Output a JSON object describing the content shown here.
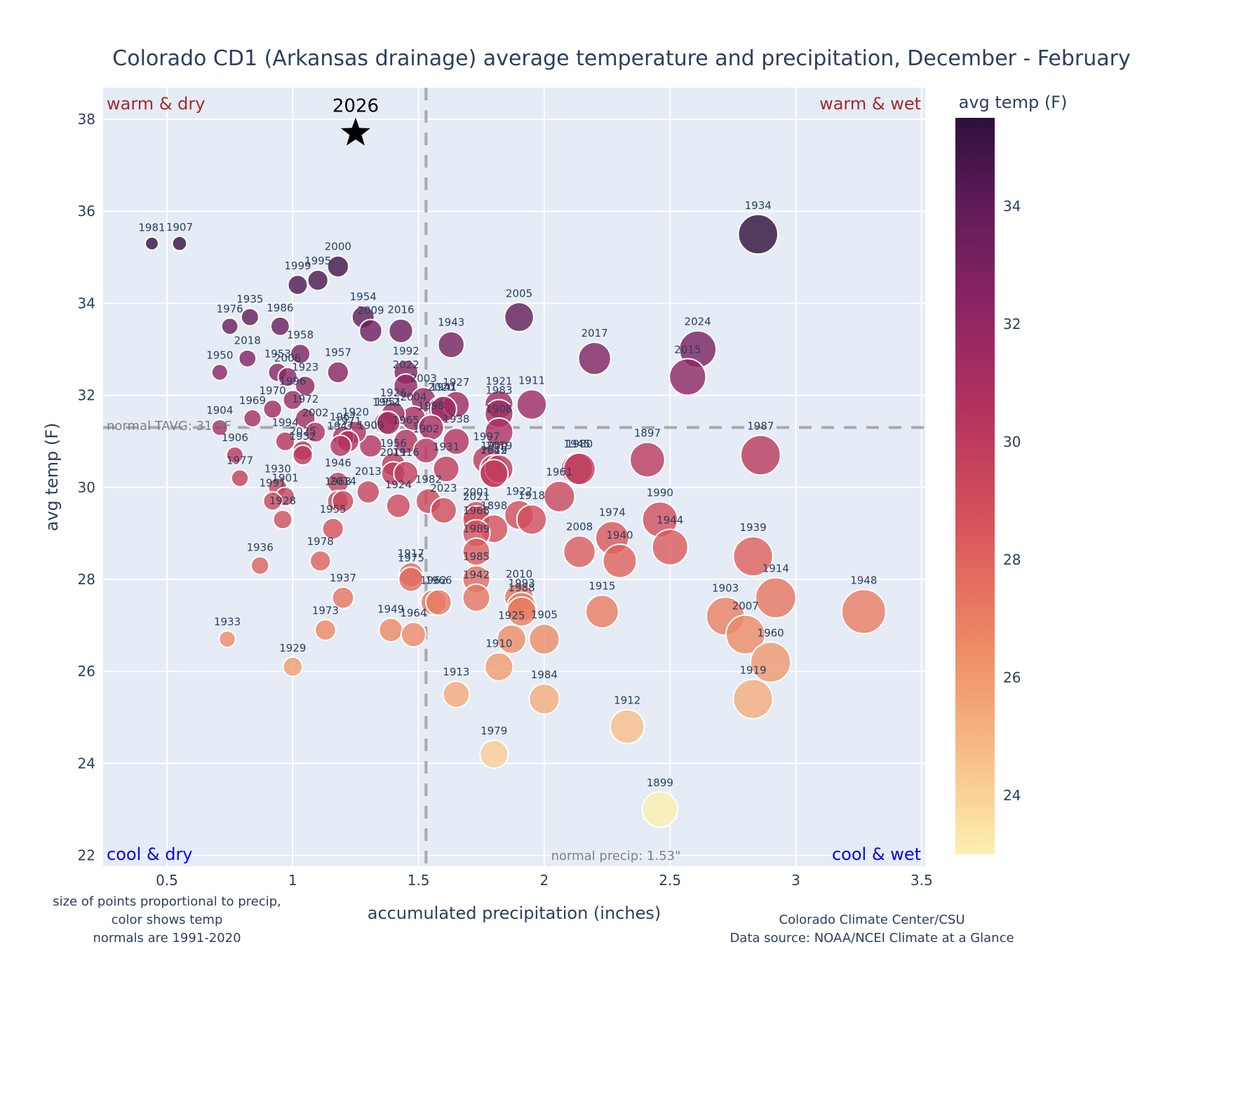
{
  "chart_data": {
    "type": "scatter",
    "title": "Colorado CD1 (Arkansas drainage) average temperature and precipitation, December - February",
    "xlabel": "accumulated precipitation (inches)",
    "ylabel": "avg temp (F)",
    "xlim": [
      0.25,
      3.52
    ],
    "ylim": [
      21.8,
      38.9
    ],
    "x_ticks": [
      0.5,
      1,
      1.5,
      2,
      2.5,
      3,
      3.5
    ],
    "x_tick_labels": [
      "0.5",
      "1",
      "1.5",
      "2",
      "2.5",
      "3",
      "3.5"
    ],
    "y_ticks": [
      22,
      24,
      26,
      28,
      30,
      32,
      34,
      36,
      38
    ],
    "y_tick_labels": [
      "22",
      "24",
      "26",
      "28",
      "30",
      "32",
      "34",
      "36",
      "38"
    ],
    "grid": true,
    "colorbar": {
      "title": "avg temp (F)",
      "range": [
        23,
        35.5
      ],
      "ticks": [
        24,
        26,
        28,
        30,
        32,
        34
      ],
      "tick_labels": [
        "24",
        "26",
        "28",
        "30",
        "32",
        "34"
      ],
      "colorscale": "magma-like (light yellow to dark purple)",
      "placement": "right"
    },
    "size_encoding": "precipitation",
    "color_encoding": "avg temp",
    "normals": {
      "precip": 1.53,
      "precip_label": "normal precip: 1.53\"",
      "temp": 31.3,
      "temp_label": "normal TAVG: 31.3F"
    },
    "quadrant_labels": {
      "top_left": "warm & dry",
      "top_right": "warm & wet",
      "bottom_left": "cool & dry",
      "bottom_right": "cool & wet"
    },
    "highlight": {
      "label": "2026",
      "x": 1.25,
      "y": 37.7,
      "marker": "star"
    },
    "points": [
      {
        "year": "1981",
        "x": 0.44,
        "y": 35.3
      },
      {
        "year": "1907",
        "x": 0.55,
        "y": 35.3
      },
      {
        "year": "2000",
        "x": 1.18,
        "y": 34.8
      },
      {
        "year": "1995",
        "x": 1.1,
        "y": 34.5
      },
      {
        "year": "1999",
        "x": 1.02,
        "y": 34.4
      },
      {
        "year": "1954",
        "x": 1.28,
        "y": 33.7
      },
      {
        "year": "2009",
        "x": 1.31,
        "y": 33.4
      },
      {
        "year": "2016",
        "x": 1.43,
        "y": 33.4
      },
      {
        "year": "1935",
        "x": 0.83,
        "y": 33.7
      },
      {
        "year": "1976",
        "x": 0.75,
        "y": 33.5
      },
      {
        "year": "1986",
        "x": 0.95,
        "y": 33.5
      },
      {
        "year": "1943",
        "x": 1.63,
        "y": 33.1
      },
      {
        "year": "2005",
        "x": 1.9,
        "y": 33.7
      },
      {
        "year": "2017",
        "x": 2.2,
        "y": 32.8
      },
      {
        "year": "2024",
        "x": 2.61,
        "y": 33.0
      },
      {
        "year": "2015",
        "x": 2.57,
        "y": 32.4
      },
      {
        "year": "1934",
        "x": 2.85,
        "y": 35.5
      },
      {
        "year": "1958",
        "x": 1.03,
        "y": 32.9
      },
      {
        "year": "2018",
        "x": 0.82,
        "y": 32.8
      },
      {
        "year": "1950",
        "x": 0.71,
        "y": 32.5
      },
      {
        "year": "1953",
        "x": 0.94,
        "y": 32.5
      },
      {
        "year": "2006",
        "x": 0.98,
        "y": 32.4
      },
      {
        "year": "1923",
        "x": 1.05,
        "y": 32.2
      },
      {
        "year": "1957",
        "x": 1.18,
        "y": 32.5
      },
      {
        "year": "1992",
        "x": 1.45,
        "y": 32.5
      },
      {
        "year": "2022",
        "x": 1.45,
        "y": 32.2
      },
      {
        "year": "1996",
        "x": 1.0,
        "y": 31.9
      },
      {
        "year": "1970",
        "x": 0.92,
        "y": 31.7
      },
      {
        "year": "1972",
        "x": 1.05,
        "y": 31.5
      },
      {
        "year": "1969",
        "x": 0.84,
        "y": 31.5
      },
      {
        "year": "1904",
        "x": 0.71,
        "y": 31.3
      },
      {
        "year": "2003",
        "x": 1.52,
        "y": 31.9
      },
      {
        "year": "2020",
        "x": 1.59,
        "y": 31.7
      },
      {
        "year": "1927",
        "x": 1.65,
        "y": 31.8
      },
      {
        "year": "1921",
        "x": 1.82,
        "y": 31.8
      },
      {
        "year": "1983",
        "x": 1.82,
        "y": 31.6
      },
      {
        "year": "1908",
        "x": 1.82,
        "y": 31.2
      },
      {
        "year": "1911",
        "x": 1.95,
        "y": 31.8
      },
      {
        "year": "2004",
        "x": 1.48,
        "y": 31.5
      },
      {
        "year": "1941",
        "x": 1.6,
        "y": 31.7
      },
      {
        "year": "1998",
        "x": 1.55,
        "y": 31.3
      },
      {
        "year": "1938",
        "x": 1.65,
        "y": 31.0
      },
      {
        "year": "1926",
        "x": 1.4,
        "y": 31.6
      },
      {
        "year": "1952",
        "x": 1.37,
        "y": 31.4
      },
      {
        "year": "1951",
        "x": 1.38,
        "y": 31.4
      },
      {
        "year": "1965",
        "x": 1.45,
        "y": 31.0
      },
      {
        "year": "1909",
        "x": 1.31,
        "y": 30.9
      },
      {
        "year": "1902",
        "x": 1.53,
        "y": 30.8
      },
      {
        "year": "1920",
        "x": 1.25,
        "y": 31.2
      },
      {
        "year": "1967",
        "x": 1.2,
        "y": 31.1
      },
      {
        "year": "1971",
        "x": 1.22,
        "y": 31.0
      },
      {
        "year": "1947",
        "x": 1.19,
        "y": 30.9
      },
      {
        "year": "2002",
        "x": 1.09,
        "y": 31.2
      },
      {
        "year": "1994",
        "x": 0.97,
        "y": 31.0
      },
      {
        "year": "2025",
        "x": 1.04,
        "y": 30.8
      },
      {
        "year": "1932",
        "x": 1.04,
        "y": 30.7
      },
      {
        "year": "1906",
        "x": 0.77,
        "y": 30.7
      },
      {
        "year": "1977",
        "x": 0.79,
        "y": 30.2
      },
      {
        "year": "1930",
        "x": 0.94,
        "y": 30.0
      },
      {
        "year": "1901",
        "x": 0.97,
        "y": 29.8
      },
      {
        "year": "1991",
        "x": 0.92,
        "y": 29.7
      },
      {
        "year": "1928",
        "x": 0.96,
        "y": 29.3
      },
      {
        "year": "1946",
        "x": 1.18,
        "y": 30.1
      },
      {
        "year": "1963",
        "x": 1.18,
        "y": 29.7
      },
      {
        "year": "2014",
        "x": 1.2,
        "y": 29.7
      },
      {
        "year": "1955",
        "x": 1.16,
        "y": 29.1
      },
      {
        "year": "2013",
        "x": 1.3,
        "y": 29.9
      },
      {
        "year": "1956",
        "x": 1.4,
        "y": 30.5
      },
      {
        "year": "2011",
        "x": 1.4,
        "y": 30.3
      },
      {
        "year": "1916",
        "x": 1.45,
        "y": 30.3
      },
      {
        "year": "1924",
        "x": 1.42,
        "y": 29.6
      },
      {
        "year": "1931",
        "x": 1.61,
        "y": 30.4
      },
      {
        "year": "1982",
        "x": 1.54,
        "y": 29.7
      },
      {
        "year": "2023",
        "x": 1.6,
        "y": 29.5
      },
      {
        "year": "1997",
        "x": 1.77,
        "y": 30.6
      },
      {
        "year": "1900",
        "x": 1.8,
        "y": 30.4
      },
      {
        "year": "1949b",
        "x": 1.8,
        "y": 30.3
      },
      {
        "year": "2019",
        "x": 1.82,
        "y": 30.4
      },
      {
        "year": "2012",
        "x": 1.8,
        "y": 30.3
      },
      {
        "year": "1945",
        "x": 2.13,
        "y": 30.4
      },
      {
        "year": "1980",
        "x": 2.14,
        "y": 30.4
      },
      {
        "year": "1961",
        "x": 2.06,
        "y": 29.8
      },
      {
        "year": "1897",
        "x": 2.41,
        "y": 30.6
      },
      {
        "year": "1987",
        "x": 2.86,
        "y": 30.7
      },
      {
        "year": "2001",
        "x": 1.73,
        "y": 29.4
      },
      {
        "year": "2021",
        "x": 1.73,
        "y": 29.3
      },
      {
        "year": "1898",
        "x": 1.8,
        "y": 29.1
      },
      {
        "year": "1968",
        "x": 1.73,
        "y": 29.0
      },
      {
        "year": "1989",
        "x": 1.73,
        "y": 28.6
      },
      {
        "year": "1922",
        "x": 1.9,
        "y": 29.4
      },
      {
        "year": "1918",
        "x": 1.95,
        "y": 29.3
      },
      {
        "year": "1990",
        "x": 2.46,
        "y": 29.3
      },
      {
        "year": "1974",
        "x": 2.27,
        "y": 28.9
      },
      {
        "year": "1944",
        "x": 2.5,
        "y": 28.7
      },
      {
        "year": "2008",
        "x": 2.14,
        "y": 28.6
      },
      {
        "year": "1940",
        "x": 2.3,
        "y": 28.4
      },
      {
        "year": "1939",
        "x": 2.83,
        "y": 28.5
      },
      {
        "year": "1985",
        "x": 1.73,
        "y": 28.0
      },
      {
        "year": "1942",
        "x": 1.73,
        "y": 27.6
      },
      {
        "year": "1936",
        "x": 0.87,
        "y": 28.3
      },
      {
        "year": "1978",
        "x": 1.11,
        "y": 28.4
      },
      {
        "year": "1937",
        "x": 1.2,
        "y": 27.6
      },
      {
        "year": "1917",
        "x": 1.47,
        "y": 28.1
      },
      {
        "year": "1975",
        "x": 1.47,
        "y": 28.0
      },
      {
        "year": "1962",
        "x": 1.56,
        "y": 27.5
      },
      {
        "year": "1966",
        "x": 1.58,
        "y": 27.5
      },
      {
        "year": "2010",
        "x": 1.9,
        "y": 27.6
      },
      {
        "year": "1993",
        "x": 1.91,
        "y": 27.4
      },
      {
        "year": "1988",
        "x": 1.91,
        "y": 27.3
      },
      {
        "year": "1915",
        "x": 2.23,
        "y": 27.3
      },
      {
        "year": "1914",
        "x": 2.92,
        "y": 27.6
      },
      {
        "year": "1903",
        "x": 2.72,
        "y": 27.2
      },
      {
        "year": "2007",
        "x": 2.8,
        "y": 26.8
      },
      {
        "year": "1948",
        "x": 3.27,
        "y": 27.3
      },
      {
        "year": "1949",
        "x": 1.39,
        "y": 26.9
      },
      {
        "year": "1964",
        "x": 1.48,
        "y": 26.8
      },
      {
        "year": "1973",
        "x": 1.13,
        "y": 26.9
      },
      {
        "year": "1933",
        "x": 0.74,
        "y": 26.7
      },
      {
        "year": "1925",
        "x": 1.87,
        "y": 26.7
      },
      {
        "year": "1905",
        "x": 2.0,
        "y": 26.7
      },
      {
        "year": "1960",
        "x": 2.9,
        "y": 26.2
      },
      {
        "year": "1929",
        "x": 1.0,
        "y": 26.1
      },
      {
        "year": "1910",
        "x": 1.82,
        "y": 26.1
      },
      {
        "year": "1913",
        "x": 1.65,
        "y": 25.5
      },
      {
        "year": "1984",
        "x": 2.0,
        "y": 25.4
      },
      {
        "year": "1919",
        "x": 2.83,
        "y": 25.4
      },
      {
        "year": "1912",
        "x": 2.33,
        "y": 24.8
      },
      {
        "year": "1979",
        "x": 1.8,
        "y": 24.2
      },
      {
        "year": "1899",
        "x": 2.46,
        "y": 23.0
      }
    ],
    "annotations": {
      "bottom_left_note": [
        "size of points proportional to precip,",
        "color shows temp",
        "normals are 1991-2020"
      ],
      "bottom_right_note": [
        "Colorado Climate Center/CSU",
        "Data source: NOAA/NCEI Climate at a Glance"
      ]
    }
  }
}
